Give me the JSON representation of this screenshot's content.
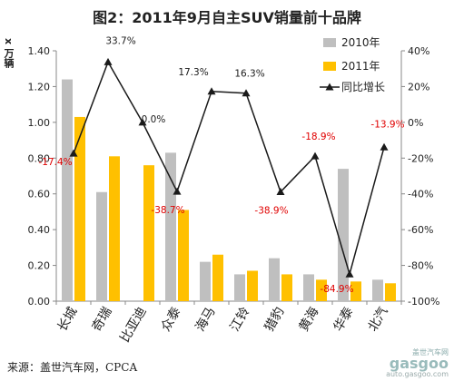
{
  "title": "图2：2011年9月自主SUV销量前十品牌",
  "unit_label": "x 万辆",
  "source": "来源：盖世汽车网，CPCA",
  "watermark": {
    "top": "盖世汽车网",
    "logo": "gasgoo",
    "url": "auto.gasgoo.com"
  },
  "colors": {
    "bar2010": "#bfbfbf",
    "bar2011": "#ffc000",
    "line": "#1a1a1a",
    "neg_label": "#e00000",
    "pos_label": "#1a1a1a"
  },
  "chart_data": {
    "type": "bar",
    "categories": [
      "长城",
      "奇瑞",
      "比亚迪",
      "众泰",
      "海马",
      "江铃",
      "猎豹",
      "黄海",
      "华泰",
      "北汽"
    ],
    "series": [
      {
        "name": "2010年",
        "type": "bar",
        "axis": "left",
        "values": [
          1.24,
          0.61,
          0,
          0.83,
          0.22,
          0.15,
          0.24,
          0.15,
          0.74,
          0.12
        ]
      },
      {
        "name": "2011年",
        "type": "bar",
        "axis": "left",
        "values": [
          1.03,
          0.81,
          0.76,
          0.51,
          0.26,
          0.17,
          0.15,
          0.12,
          0.11,
          0.1
        ]
      },
      {
        "name": "同比增长",
        "type": "line",
        "axis": "right",
        "values": [
          -17.4,
          33.7,
          0.0,
          -38.7,
          17.3,
          16.3,
          -38.9,
          -18.9,
          -84.9,
          -13.9
        ]
      }
    ],
    "point_labels": [
      "-17.4%",
      "33.7%",
      "0.0%",
      "-38.7%",
      "17.3%",
      "16.3%",
      "-38.9%",
      "-18.9%",
      "-84.9%",
      "-13.9%"
    ],
    "y_left": {
      "min": 0,
      "max": 1.4,
      "ticks": [
        "0.00",
        "0.20",
        "0.40",
        "0.60",
        "0.80",
        "1.00",
        "1.20",
        "1.40"
      ]
    },
    "y_right": {
      "min": -100,
      "max": 40,
      "ticks": [
        "-100%",
        "-80%",
        "-60%",
        "-40%",
        "-20%",
        "0%",
        "20%",
        "40%"
      ]
    },
    "legend_position": "top-right",
    "grid": false
  }
}
